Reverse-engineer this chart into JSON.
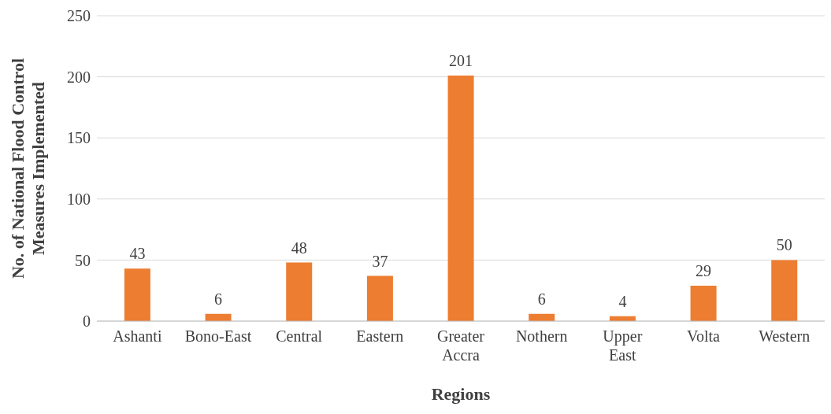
{
  "chart_data": {
    "type": "bar",
    "categories": [
      "Ashanti",
      "Bono-East",
      "Central",
      "Eastern",
      "Greater Accra",
      "Nothern",
      "Upper East",
      "Volta",
      "Western"
    ],
    "values": [
      43,
      6,
      48,
      37,
      201,
      6,
      4,
      29,
      50
    ],
    "color": "#ed7d31",
    "ylim": [
      0,
      250
    ],
    "yticks": [
      0,
      50,
      100,
      150,
      200,
      250
    ],
    "grid": "y",
    "data_labels": true,
    "xlabel": "Regions",
    "ylabel": "No. of National Flood Control Measures Implemented"
  }
}
